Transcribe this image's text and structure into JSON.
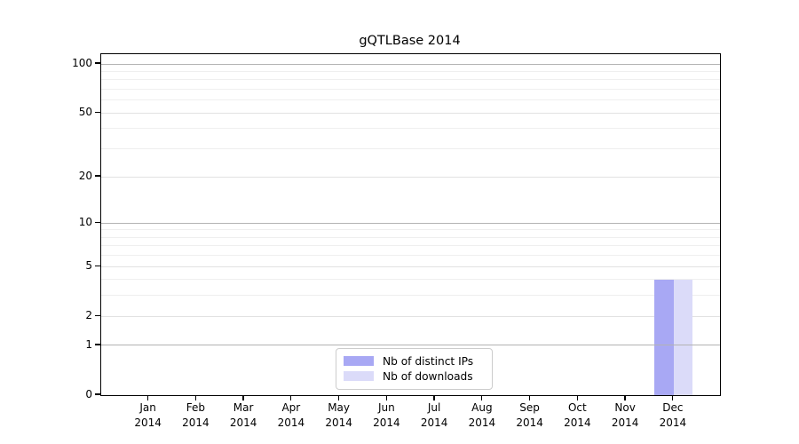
{
  "chart_data": {
    "type": "bar",
    "title": "gQTLBase 2014",
    "categories": [
      "Jan 2014",
      "Feb 2014",
      "Mar 2014",
      "Apr 2014",
      "May 2014",
      "Jun 2014",
      "Jul 2014",
      "Aug 2014",
      "Sep 2014",
      "Oct 2014",
      "Nov 2014",
      "Dec 2014"
    ],
    "series": [
      {
        "name": "Nb of distinct IPs",
        "color": "#a8a8f4",
        "values": [
          0,
          0,
          0,
          0,
          0,
          0,
          0,
          0,
          0,
          0,
          0,
          4
        ]
      },
      {
        "name": "Nb of downloads",
        "color": "#dbdbf9",
        "values": [
          0,
          0,
          0,
          0,
          0,
          0,
          0,
          0,
          0,
          0,
          0,
          4
        ]
      }
    ],
    "xlabel": "",
    "ylabel": "",
    "yscale": "log1p",
    "yticks": [
      0,
      1,
      2,
      5,
      10,
      20,
      50,
      100
    ],
    "minor_gridlines": [
      3,
      4,
      6,
      7,
      8,
      9,
      30,
      40,
      60,
      70,
      80,
      90
    ],
    "ylim": [
      0,
      115
    ],
    "grid": "horizontal",
    "legend_position": "lower center"
  },
  "colors": {
    "background": "#ffffff",
    "axis": "#000000",
    "grid_decade": "#b3b3b3",
    "grid_labeled": "#e2e2e2",
    "grid_minor": "#efefef",
    "legend_border": "#cccccc"
  }
}
